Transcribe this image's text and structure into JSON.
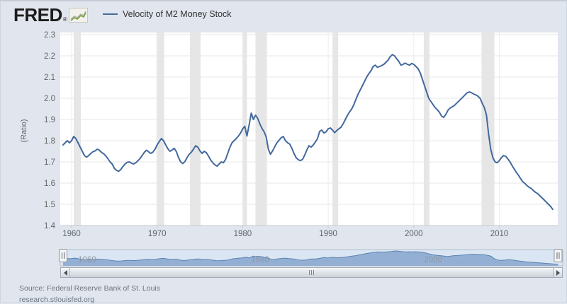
{
  "header": {
    "logo_text": "FRED",
    "logo_registered": "®",
    "legend": {
      "label": "Velocity of M2 Money Stock",
      "line_color": "#44699d"
    }
  },
  "chart_data": {
    "type": "line",
    "series_name": "Velocity of M2 Money Stock",
    "title": "Velocity of M2 Money Stock",
    "xlabel": "",
    "ylabel": "(Ratio)",
    "ylim": [
      1.4,
      2.3
    ],
    "y_tick_labels": [
      "1.4",
      "1.5",
      "1.6",
      "1.7",
      "1.8",
      "1.9",
      "2.0",
      "2.1",
      "2.2",
      "2.3"
    ],
    "x_tick_labels": [
      "1960",
      "1970",
      "1980",
      "1990",
      "2000",
      "2010"
    ],
    "x_start": 1959.0,
    "x_end": 2016.25,
    "x_step_years": 0.25,
    "grid": true,
    "legend_position": "top",
    "line_color": "#44699d",
    "recession_color": "#e6e6e6",
    "recession_bands": [
      [
        1960.25,
        1961.08
      ],
      [
        1969.92,
        1970.83
      ],
      [
        1973.83,
        1975.08
      ],
      [
        1980.0,
        1980.5
      ],
      [
        1981.5,
        1982.83
      ],
      [
        1990.5,
        1991.17
      ],
      [
        2001.17,
        2001.83
      ],
      [
        2007.92,
        2009.42
      ]
    ],
    "values": [
      1.78,
      1.79,
      1.8,
      1.79,
      1.8,
      1.82,
      1.81,
      1.79,
      1.77,
      1.75,
      1.73,
      1.722,
      1.73,
      1.74,
      1.748,
      1.752,
      1.76,
      1.755,
      1.745,
      1.738,
      1.728,
      1.715,
      1.7,
      1.69,
      1.67,
      1.66,
      1.656,
      1.664,
      1.678,
      1.69,
      1.698,
      1.7,
      1.694,
      1.69,
      1.696,
      1.705,
      1.716,
      1.73,
      1.745,
      1.755,
      1.748,
      1.74,
      1.746,
      1.76,
      1.78,
      1.796,
      1.81,
      1.8,
      1.78,
      1.762,
      1.75,
      1.756,
      1.764,
      1.748,
      1.72,
      1.7,
      1.692,
      1.702,
      1.72,
      1.736,
      1.746,
      1.76,
      1.776,
      1.77,
      1.752,
      1.74,
      1.75,
      1.744,
      1.728,
      1.71,
      1.696,
      1.686,
      1.68,
      1.69,
      1.7,
      1.696,
      1.712,
      1.74,
      1.768,
      1.79,
      1.8,
      1.81,
      1.822,
      1.836,
      1.856,
      1.868,
      1.822,
      1.874,
      1.93,
      1.9,
      1.92,
      1.906,
      1.88,
      1.858,
      1.842,
      1.818,
      1.76,
      1.736,
      1.752,
      1.772,
      1.79,
      1.802,
      1.814,
      1.82,
      1.8,
      1.79,
      1.784,
      1.764,
      1.74,
      1.72,
      1.71,
      1.706,
      1.712,
      1.732,
      1.756,
      1.776,
      1.77,
      1.78,
      1.794,
      1.81,
      1.844,
      1.85,
      1.836,
      1.842,
      1.856,
      1.86,
      1.85,
      1.838,
      1.848,
      1.856,
      1.864,
      1.88,
      1.9,
      1.92,
      1.936,
      1.95,
      1.97,
      1.996,
      2.02,
      2.04,
      2.06,
      2.08,
      2.1,
      2.116,
      2.13,
      2.15,
      2.156,
      2.146,
      2.15,
      2.154,
      2.16,
      2.17,
      2.18,
      2.196,
      2.206,
      2.2,
      2.186,
      2.174,
      2.156,
      2.16,
      2.166,
      2.16,
      2.156,
      2.164,
      2.16,
      2.15,
      2.14,
      2.12,
      2.09,
      2.06,
      2.03,
      2.0,
      1.985,
      1.97,
      1.956,
      1.946,
      1.934,
      1.916,
      1.91,
      1.924,
      1.944,
      1.954,
      1.96,
      1.966,
      1.976,
      1.986,
      1.996,
      2.006,
      2.016,
      2.026,
      2.03,
      2.026,
      2.02,
      2.016,
      2.01,
      2.0,
      1.976,
      1.956,
      1.92,
      1.83,
      1.76,
      1.72,
      1.7,
      1.696,
      1.706,
      1.72,
      1.73,
      1.726,
      1.714,
      1.7,
      1.682,
      1.666,
      1.65,
      1.636,
      1.62,
      1.606,
      1.598,
      1.588,
      1.58,
      1.574,
      1.564,
      1.556,
      1.55,
      1.54,
      1.53,
      1.52,
      1.51,
      1.5,
      1.49,
      1.476
    ]
  },
  "navigator": {
    "x_labels": [
      "1960",
      "1980",
      "2000"
    ],
    "bg_color": "#dbe6f4",
    "fill_color": "#8fadd2",
    "line_color": "#5d82b0",
    "border_color": "#b3bdc9",
    "label_color": "#8d97a5"
  },
  "footer": {
    "source": "Source: Federal Reserve Bank of St. Louis",
    "link": "research.stlouisfed.org"
  }
}
